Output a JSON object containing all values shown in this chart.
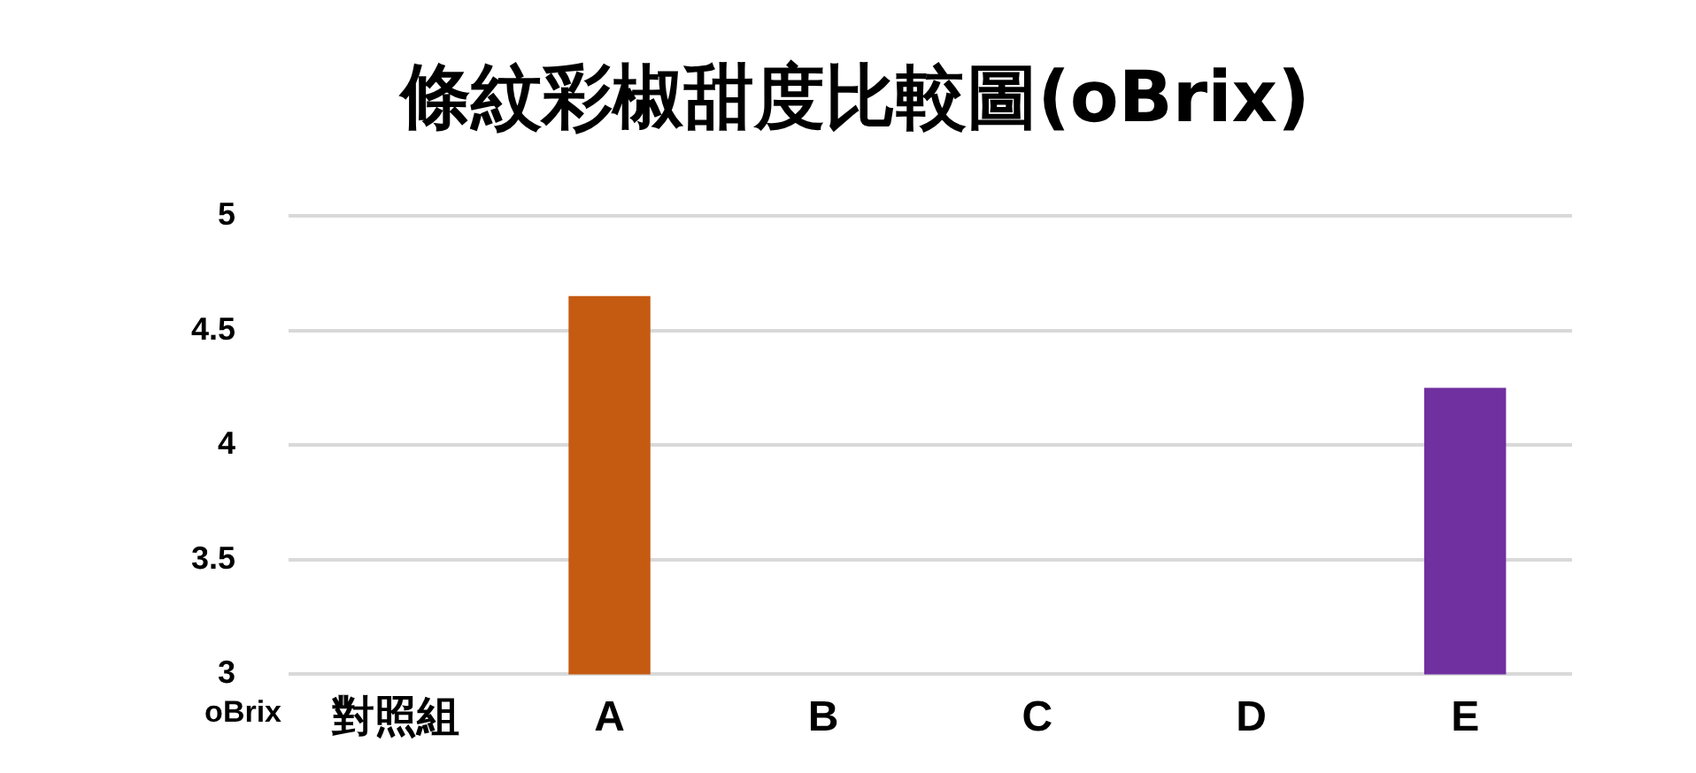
{
  "chart_data": {
    "type": "bar",
    "title": "條紋彩椒甜度比較圖(oBrix)",
    "ylabel": "oBrix",
    "categories": [
      "對照組",
      "A",
      "B",
      "C",
      "D",
      "E"
    ],
    "values": [
      null,
      4.65,
      null,
      null,
      null,
      4.25
    ],
    "colors": [
      "#c55a11",
      "#c55a11",
      "#ed7d31",
      "#a5a5a5",
      "#ffc000",
      "#7030a0"
    ],
    "ylim": [
      3,
      5
    ],
    "yticks": [
      3,
      3.5,
      4,
      4.5,
      5
    ],
    "grid": "y",
    "legend": false
  }
}
